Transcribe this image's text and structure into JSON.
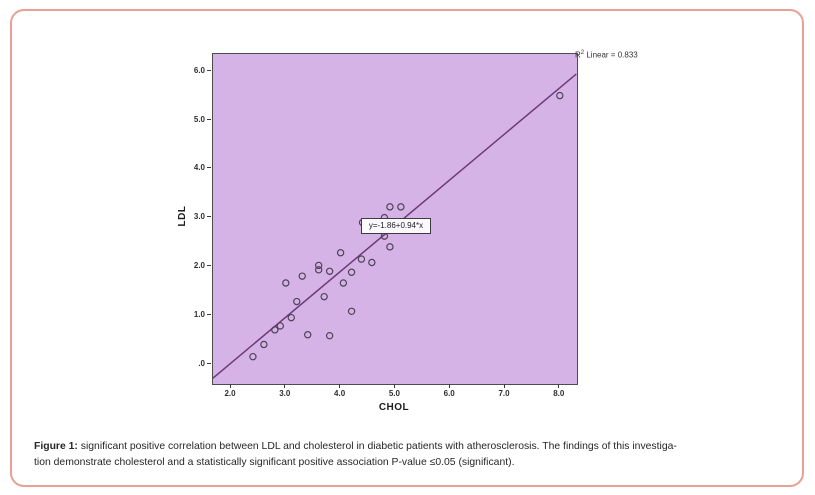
{
  "figure": {
    "border_color": "#e6a195"
  },
  "caption": {
    "label": "Figure 1:",
    "line1": " significant positive correlation between LDL and cholesterol in diabetic patients with atherosclerosis. The findings of this investiga-",
    "line2": "tion demonstrate cholesterol and a statistically significant positive association P-value ≤0.05 (significant)."
  },
  "annotation": {
    "r2_base": "R",
    "r2_sup": "2",
    "r2_rest": " Linear = 0.833"
  },
  "chart_data": {
    "type": "scatter",
    "title": "",
    "xlabel": "CHOL",
    "ylabel": "LDL",
    "xlim": [
      1.67,
      8.3
    ],
    "ylim": [
      -0.41,
      6.35
    ],
    "x_ticks": [
      {
        "label": "2.0",
        "value": 2
      },
      {
        "label": "3.0",
        "value": 3
      },
      {
        "label": "4.0",
        "value": 4
      },
      {
        "label": "5.0",
        "value": 5
      },
      {
        "label": "6.0",
        "value": 6
      },
      {
        "label": "7.0",
        "value": 7
      },
      {
        "label": "8.0",
        "value": 8
      }
    ],
    "y_ticks": [
      {
        "label": "6.0",
        "value": 6
      },
      {
        "label": "5.0",
        "value": 5
      },
      {
        "label": "4.0",
        "value": 4
      },
      {
        "label": "3.0",
        "value": 3
      },
      {
        "label": "2.0",
        "value": 2
      },
      {
        "label": "1.0",
        "value": 1
      },
      {
        "label": ".0",
        "value": 0
      }
    ],
    "points": [
      [
        2.4,
        0.15
      ],
      [
        2.6,
        0.4
      ],
      [
        2.8,
        0.7
      ],
      [
        2.9,
        0.78
      ],
      [
        3.0,
        1.66
      ],
      [
        3.1,
        0.95
      ],
      [
        3.2,
        1.28
      ],
      [
        3.3,
        1.8
      ],
      [
        3.4,
        0.6
      ],
      [
        3.6,
        1.93
      ],
      [
        3.6,
        2.02
      ],
      [
        3.7,
        1.38
      ],
      [
        3.8,
        1.9
      ],
      [
        3.8,
        0.58
      ],
      [
        4.0,
        2.28
      ],
      [
        4.05,
        1.66
      ],
      [
        4.2,
        1.88
      ],
      [
        4.2,
        1.08
      ],
      [
        4.38,
        2.15
      ],
      [
        4.57,
        2.08
      ],
      [
        4.4,
        2.9
      ],
      [
        4.8,
        2.62
      ],
      [
        4.9,
        2.4
      ],
      [
        4.8,
        3.0
      ],
      [
        4.9,
        3.22
      ],
      [
        5.1,
        3.22
      ],
      [
        8.0,
        5.5
      ]
    ],
    "regression": {
      "equation_label": "y=-1.86+0.94*x",
      "intercept": -1.86,
      "slope": 0.94,
      "r_squared": 0.833
    },
    "grid": false,
    "legend": "none",
    "plot_bg": "#d6b3e7",
    "line_color": "#6b3a78",
    "marker_color": "#4f4257"
  }
}
